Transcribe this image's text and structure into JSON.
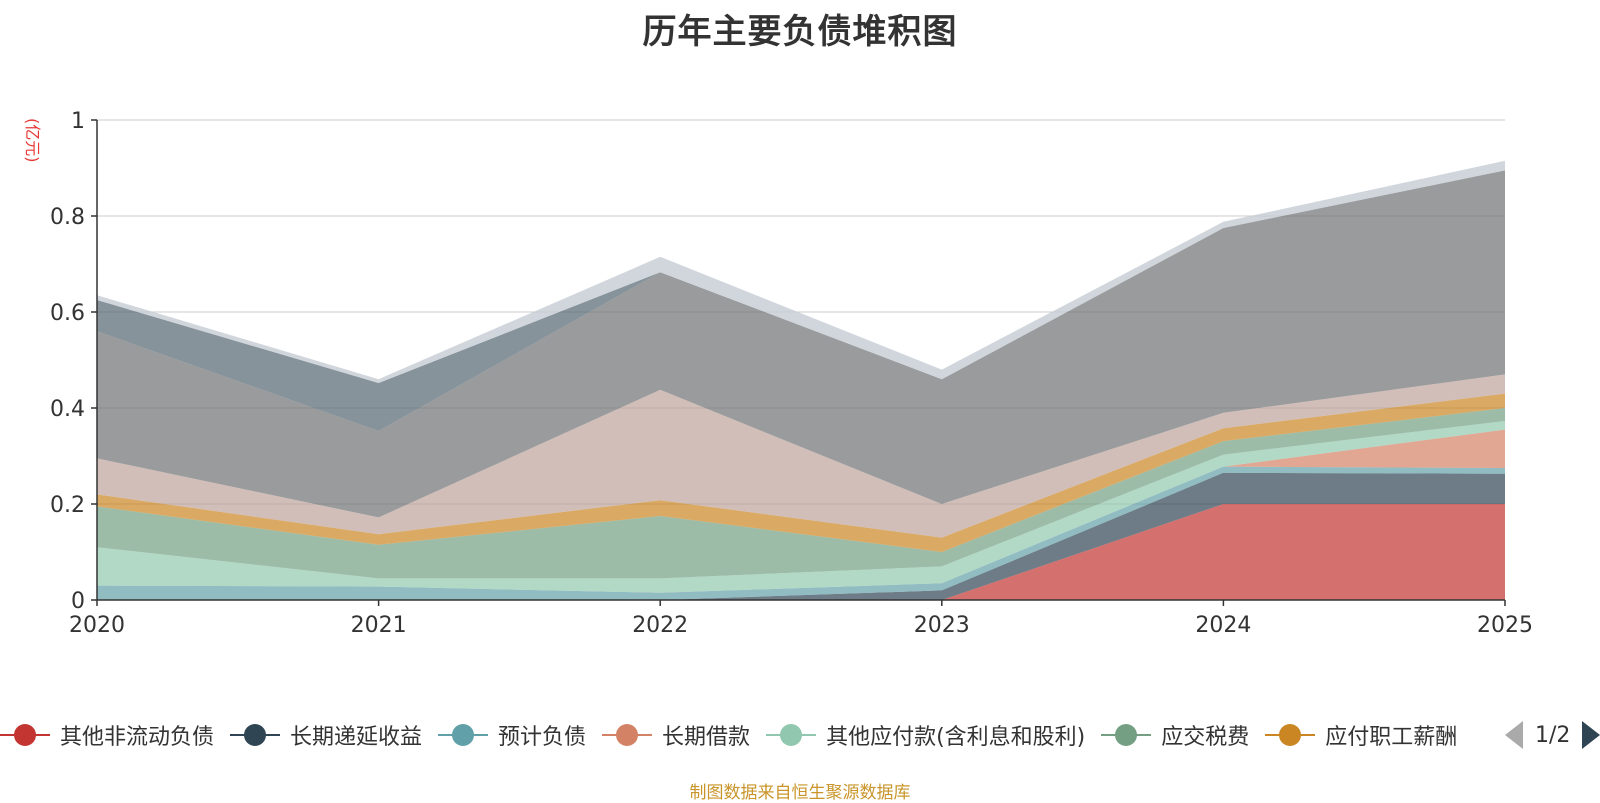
{
  "title": "历年主要负债堆积图",
  "unit_label": "(亿元)",
  "footer": "制图数据来自恒生聚源数据库",
  "pager": {
    "text": "1/2"
  },
  "legend": [
    {
      "name": "其他非流动负债",
      "color": "#c23531"
    },
    {
      "name": "长期递延收益",
      "color": "#2f4554"
    },
    {
      "name": "预计负债",
      "color": "#61a0a8"
    },
    {
      "name": "长期借款",
      "color": "#d48265"
    },
    {
      "name": "其他应付款(含利息和股利)",
      "color": "#91c7ae"
    },
    {
      "name": "应交税费",
      "color": "#749f83"
    },
    {
      "name": "应付职工薪酬",
      "color": "#ca8622"
    }
  ],
  "chart_data": {
    "type": "area",
    "stacked": true,
    "x": [
      "2020",
      "2021",
      "2022",
      "2023",
      "2024",
      "2025"
    ],
    "ylim": [
      0,
      1
    ],
    "yticks": [
      0,
      0.2,
      0.4,
      0.6,
      0.8,
      1
    ],
    "grid": true,
    "series": [
      {
        "name": "其他非流动负债",
        "color": "#c23531",
        "opacity": 0.7,
        "values": [
          0,
          0,
          0,
          0,
          0.2,
          0.2
        ]
      },
      {
        "name": "长期递延收益",
        "color": "#2f4554",
        "opacity": 0.7,
        "values": [
          0,
          0,
          0,
          0.02,
          0.065,
          0.063
        ]
      },
      {
        "name": "预计负债",
        "color": "#61a0a8",
        "opacity": 0.7,
        "values": [
          0.03,
          0.028,
          0.015,
          0.015,
          0.013,
          0.012
        ]
      },
      {
        "name": "长期借款",
        "color": "#d48265",
        "opacity": 0.7,
        "values": [
          0,
          0,
          0,
          0,
          0,
          0.08
        ]
      },
      {
        "name": "其他应付款(含利息和股利)",
        "color": "#91c7ae",
        "opacity": 0.7,
        "values": [
          0.08,
          0.017,
          0.03,
          0.035,
          0.025,
          0.018
        ]
      },
      {
        "name": "应交税费",
        "color": "#749f83",
        "opacity": 0.7,
        "values": [
          0.085,
          0.07,
          0.13,
          0.03,
          0.028,
          0.027
        ]
      },
      {
        "name": "应付职工薪酬",
        "color": "#ca8622",
        "opacity": 0.7,
        "values": [
          0.025,
          0.022,
          0.033,
          0.03,
          0.027,
          0.03
        ]
      },
      {
        "name": "",
        "color": "#bda29a",
        "opacity": 0.7,
        "values": [
          0.075,
          0.035,
          0.23,
          0.07,
          0.032,
          0.04
        ]
      },
      {
        "name": "",
        "color": "#6e7074",
        "opacity": 0.7,
        "values": [
          0.265,
          0.18,
          0.245,
          0.26,
          0.385,
          0.425
        ]
      },
      {
        "name": "",
        "color": "#546570",
        "opacity": 0.7,
        "values": [
          0.065,
          0.1,
          0,
          0,
          0,
          0
        ]
      },
      {
        "name": "",
        "color": "#c4ccd3",
        "opacity": 0.8,
        "values": [
          0.01,
          0.008,
          0.032,
          0.02,
          0.013,
          0.02
        ]
      }
    ]
  }
}
